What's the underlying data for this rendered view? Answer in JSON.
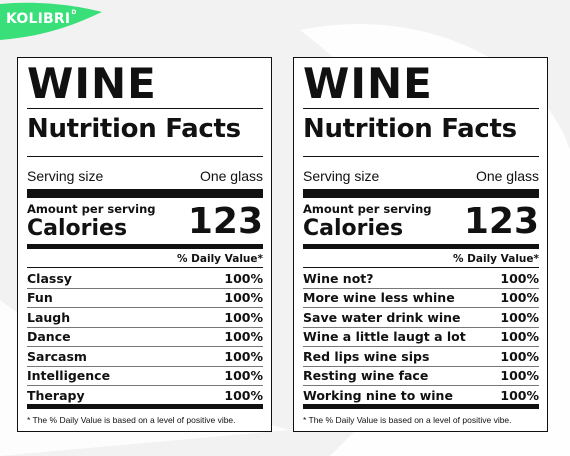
{
  "brand": {
    "name": "KOLIBRI",
    "mark": "D",
    "accent": "#39e07a"
  },
  "colors": {
    "background": "#f2f2f2",
    "ink": "#111111",
    "card": "#ffffff"
  },
  "labels": [
    {
      "title": "WINE",
      "subtitle": "Nutrition Facts",
      "serving_label": "Serving size",
      "serving_value": "One glass",
      "amount_label": "Amount per serving",
      "calories_label": "Calories",
      "calories_value": "123",
      "dv_header": "% Daily Value*",
      "rows": [
        {
          "name": "Classy",
          "value": "100%"
        },
        {
          "name": "Fun",
          "value": "100%"
        },
        {
          "name": "Laugh",
          "value": "100%"
        },
        {
          "name": "Dance",
          "value": "100%"
        },
        {
          "name": "Sarcasm",
          "value": "100%"
        },
        {
          "name": "Intelligence",
          "value": "100%"
        },
        {
          "name": "Therapy",
          "value": "100%"
        }
      ],
      "footnote": "* The % Daily Value is based on a level of positive vibe."
    },
    {
      "title": "WINE",
      "subtitle": "Nutrition Facts",
      "serving_label": "Serving size",
      "serving_value": "One glass",
      "amount_label": "Amount per serving",
      "calories_label": "Calories",
      "calories_value": "123",
      "dv_header": "% Daily Value*",
      "rows": [
        {
          "name": "Wine not?",
          "value": "100%"
        },
        {
          "name": "More wine less whine",
          "value": "100%"
        },
        {
          "name": "Save water drink wine",
          "value": "100%"
        },
        {
          "name": "Wine a little laugt a lot",
          "value": "100%"
        },
        {
          "name": "Red lips wine sips",
          "value": "100%"
        },
        {
          "name": "Resting wine face",
          "value": "100%"
        },
        {
          "name": "Working nine to wine",
          "value": "100%"
        }
      ],
      "footnote": "* The % Daily Value is based on a level of positive vibe."
    }
  ]
}
